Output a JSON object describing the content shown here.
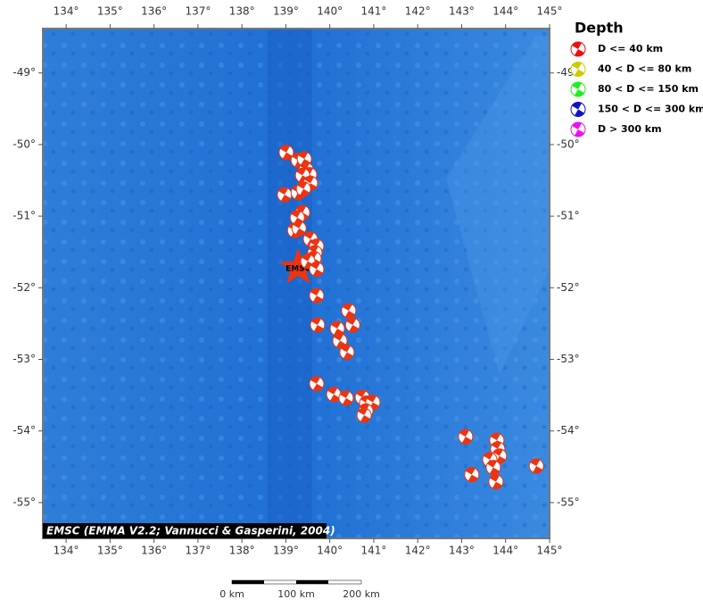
{
  "map": {
    "xlim": [
      133.47,
      145
    ],
    "ylim": [
      -55.5,
      -48.38
    ],
    "xticks": [
      {
        "value": 134,
        "label": "134°"
      },
      {
        "value": 135,
        "label": "135°"
      },
      {
        "value": 136,
        "label": "136°"
      },
      {
        "value": 137,
        "label": "137°"
      },
      {
        "value": 138,
        "label": "138°"
      },
      {
        "value": 139,
        "label": "139°"
      },
      {
        "value": 140,
        "label": "140°"
      },
      {
        "value": 141,
        "label": "141°"
      },
      {
        "value": 142,
        "label": "142°"
      },
      {
        "value": 143,
        "label": "143°"
      },
      {
        "value": 144,
        "label": "144°"
      },
      {
        "value": 145,
        "label": "145°"
      }
    ],
    "yticks": [
      {
        "value": -49,
        "label": "-49°"
      },
      {
        "value": -50,
        "label": "-50°"
      },
      {
        "value": -51,
        "label": "-51°"
      },
      {
        "value": -52,
        "label": "-52°"
      },
      {
        "value": -53,
        "label": "-53°"
      },
      {
        "value": -54,
        "label": "-54°"
      },
      {
        "value": -55,
        "label": "-55°"
      }
    ],
    "events": [
      [
        139.01,
        -50.11
      ],
      [
        139.28,
        -50.22
      ],
      [
        139.42,
        -50.2
      ],
      [
        139.46,
        -50.35
      ],
      [
        139.54,
        -50.42
      ],
      [
        139.38,
        -50.43
      ],
      [
        139.56,
        -50.54
      ],
      [
        138.97,
        -50.7
      ],
      [
        139.28,
        -50.67
      ],
      [
        139.4,
        -50.62
      ],
      [
        139.38,
        -50.95
      ],
      [
        139.26,
        -51.02
      ],
      [
        139.2,
        -51.2
      ],
      [
        139.3,
        -51.17
      ],
      [
        139.56,
        -51.32
      ],
      [
        139.7,
        -51.42
      ],
      [
        139.66,
        -51.51
      ],
      [
        139.64,
        -51.59
      ],
      [
        139.5,
        -51.63
      ],
      [
        139.7,
        -51.74
      ],
      [
        139.7,
        -52.11
      ],
      [
        140.43,
        -52.32
      ],
      [
        139.72,
        -52.52
      ],
      [
        140.52,
        -52.52
      ],
      [
        140.17,
        -52.57
      ],
      [
        140.23,
        -52.74
      ],
      [
        140.39,
        -52.9
      ],
      [
        139.7,
        -53.34
      ],
      [
        140.09,
        -53.49
      ],
      [
        140.37,
        -53.54
      ],
      [
        140.74,
        -53.53
      ],
      [
        140.84,
        -53.61
      ],
      [
        140.98,
        -53.6
      ],
      [
        140.82,
        -53.72
      ],
      [
        140.78,
        -53.78
      ],
      [
        143.09,
        -54.08
      ],
      [
        143.8,
        -54.13
      ],
      [
        143.82,
        -54.25
      ],
      [
        143.86,
        -54.35
      ],
      [
        143.64,
        -54.4
      ],
      [
        143.72,
        -54.51
      ],
      [
        143.23,
        -54.61
      ],
      [
        143.78,
        -54.71
      ],
      [
        144.7,
        -54.49
      ]
    ],
    "event_color": "#ee3311",
    "epicenter": {
      "lon": 139.28,
      "lat": -51.72,
      "label": "EMSC",
      "color": "#ee3311"
    },
    "credit": "EMSC (EMMA V2.2; Vannucci & Gasperini, 2004)",
    "scale_labels": [
      "0 km",
      "100 km",
      "200 km"
    ]
  },
  "legend": {
    "title": "Depth",
    "entries": [
      {
        "label": "D <= 40 km",
        "color": "#ee1111"
      },
      {
        "label": "40 < D <= 80 km",
        "color": "#cccc00"
      },
      {
        "label": "80 < D <= 150 km",
        "color": "#22ee22"
      },
      {
        "label": "150 < D <= 300 km",
        "color": "#1111cc"
      },
      {
        "label": "D > 300 km",
        "color": "#ee11ee"
      }
    ]
  }
}
